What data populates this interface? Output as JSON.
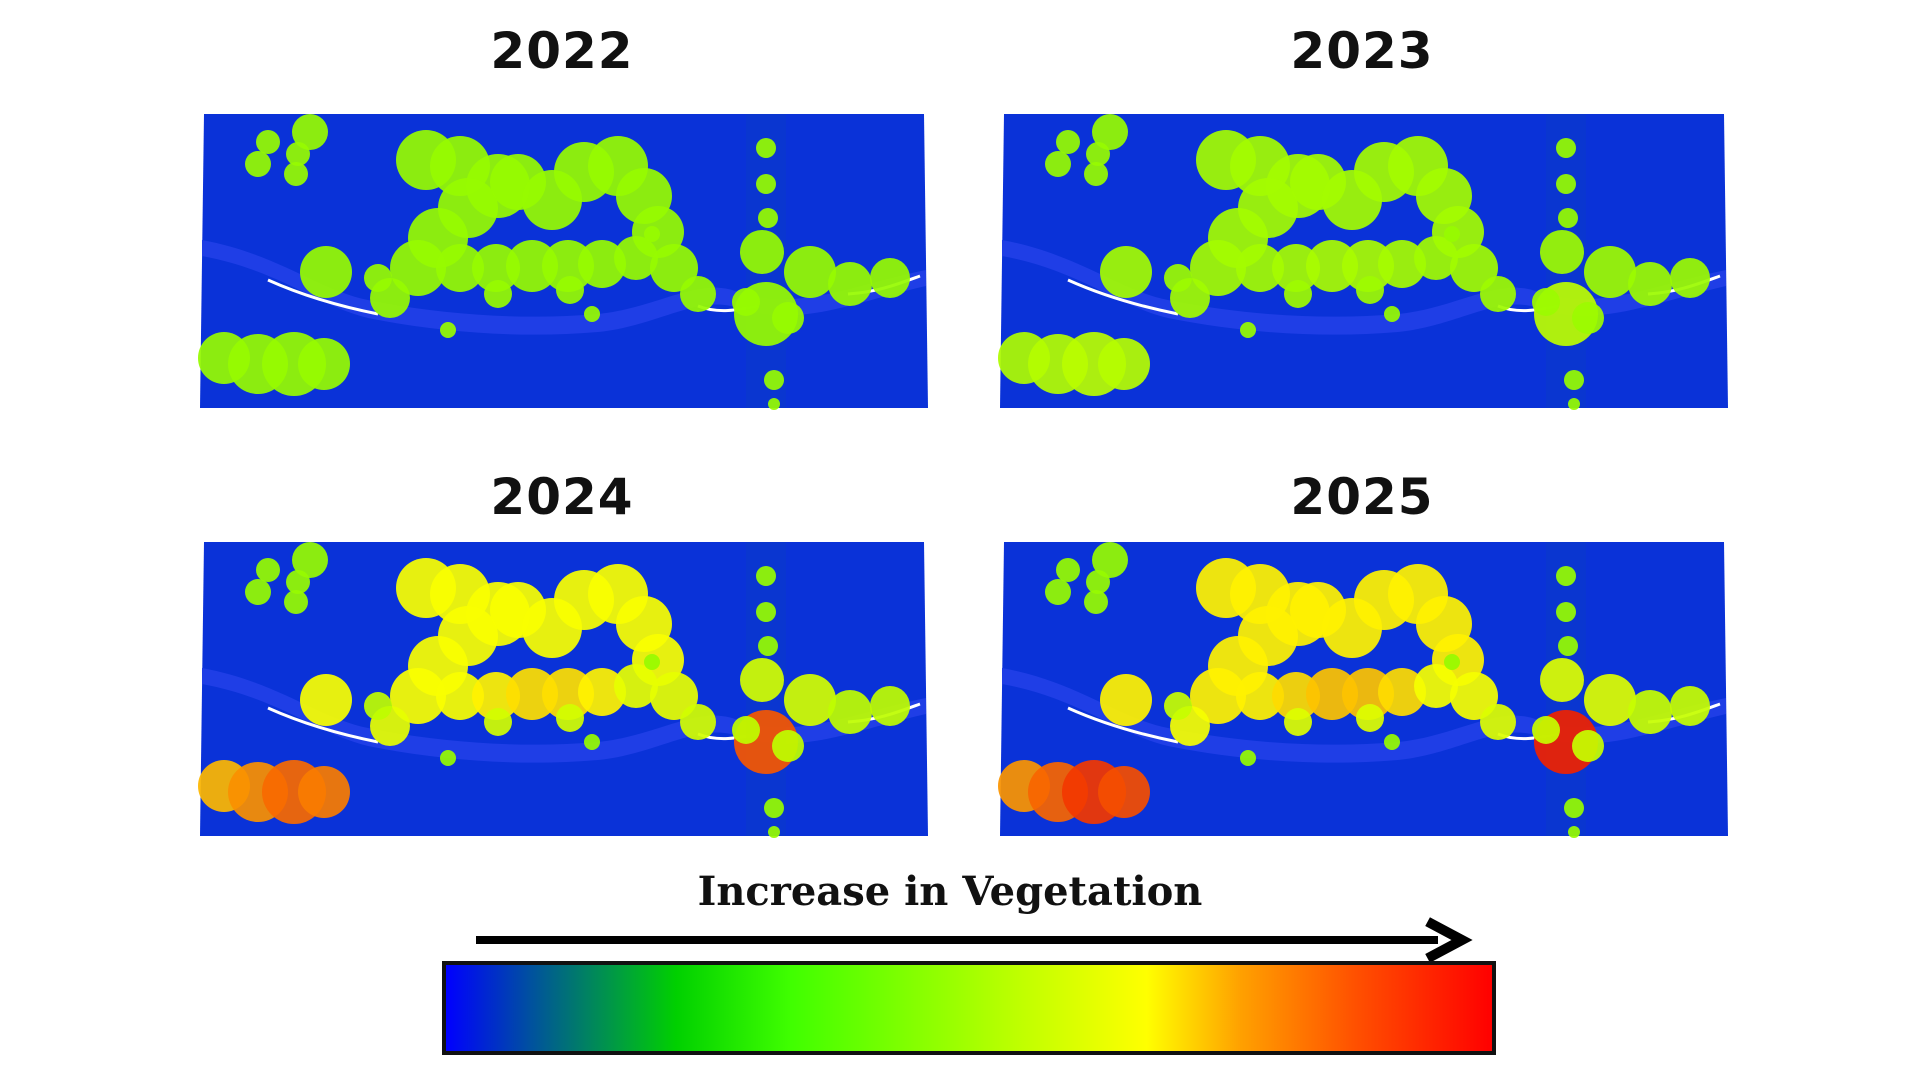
{
  "panels": [
    {
      "year": "2022",
      "intensity": 0.0
    },
    {
      "year": "2023",
      "intensity": 0.1
    },
    {
      "year": "2024",
      "intensity": 0.75
    },
    {
      "year": "2025",
      "intensity": 0.9
    }
  ],
  "legend": {
    "title": "Increase in Vegetation",
    "colors": [
      "#0000ff",
      "#0050a0",
      "#00d000",
      "#40ff00",
      "#c0ff00",
      "#ffff00",
      "#ffa000",
      "#ff5000",
      "#ff0000"
    ]
  },
  "colors": {
    "ground": "#0a32d8",
    "water": "#1f3ee6",
    "bank": "#ffffff"
  }
}
